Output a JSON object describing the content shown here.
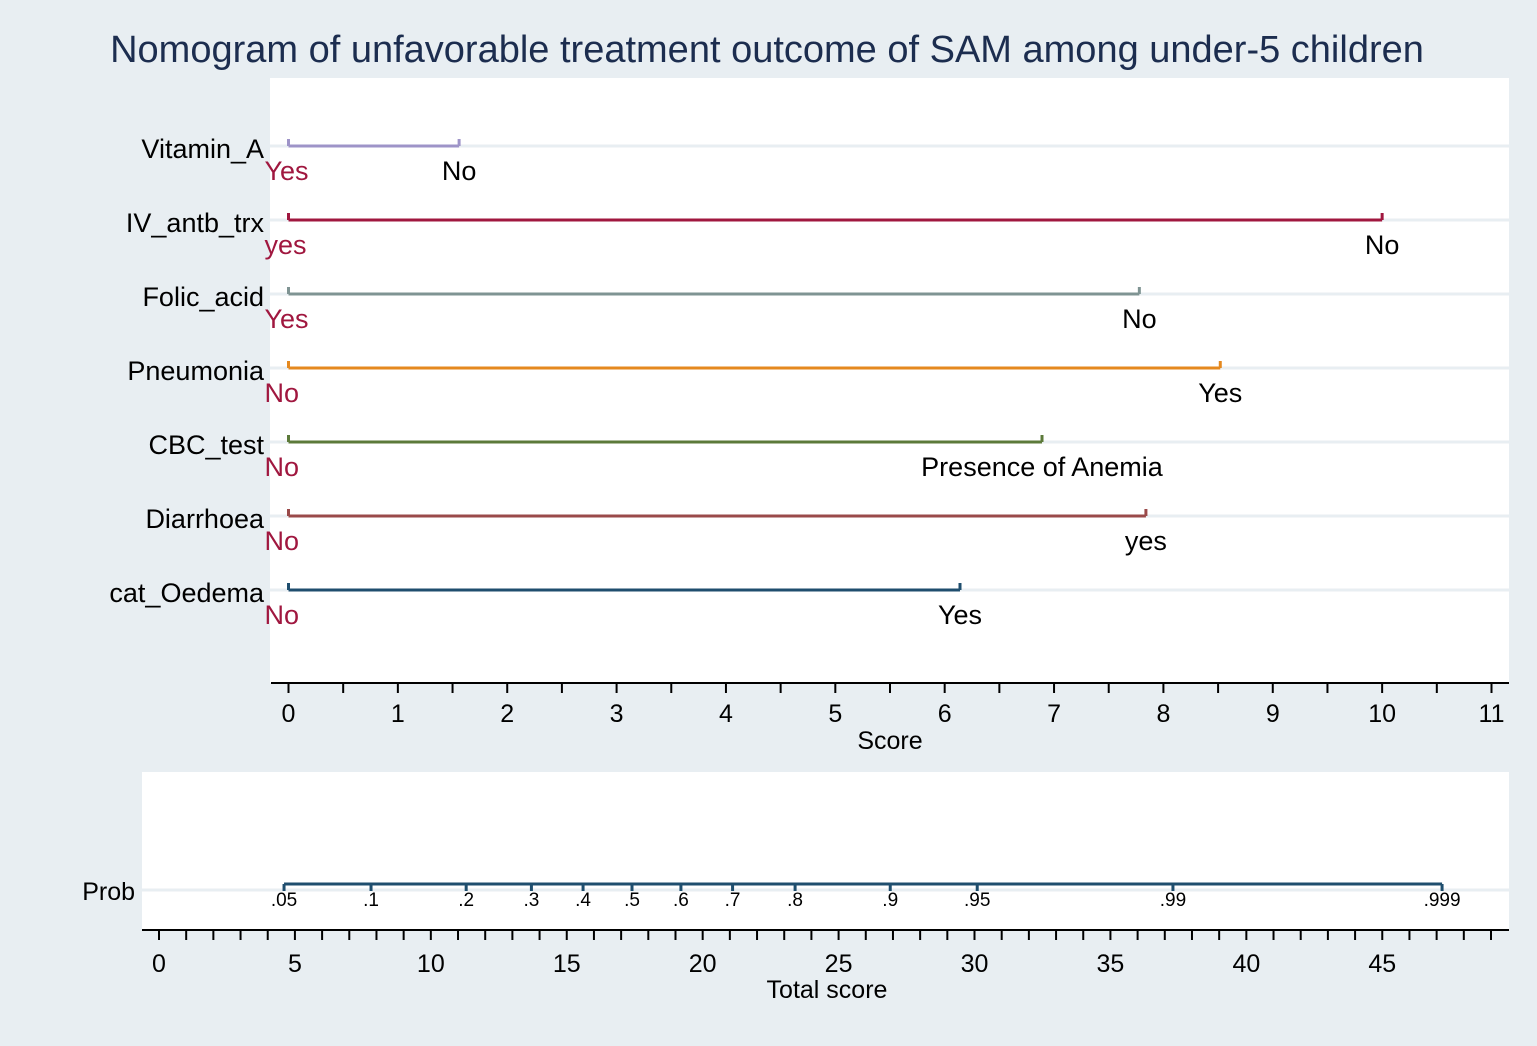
{
  "chart_data": {
    "type": "nomogram",
    "title": "Nomogram  of unfavorable treatment outcome of SAM among under-5 children",
    "colors": {
      "background": "#E8EEF2",
      "plot_region": "#FFFFFF",
      "grid": "#E8EEF2",
      "title": "#1C2D4F",
      "reference_label": "#A0173F",
      "text": "#000000",
      "prob_line": "#1F4E6E"
    },
    "score_axis": {
      "label": "Score",
      "min": 0,
      "max": 11,
      "ticks": [
        0,
        1,
        2,
        3,
        4,
        5,
        6,
        7,
        8,
        9,
        10,
        11
      ],
      "tick_labels": [
        "0",
        "1",
        "2",
        "3",
        "4",
        "5",
        "6",
        "7",
        "8",
        "9",
        "10",
        "11"
      ]
    },
    "variables": [
      {
        "name": "Vitamin_A",
        "color": "#9E94C8",
        "ref_label": "Yes",
        "ref_score": 0,
        "end_label": "No",
        "end_score": 1.56
      },
      {
        "name": "IV_antb_trx",
        "color": "#A0173F",
        "ref_label": "yes",
        "ref_score": 0,
        "end_label": "No",
        "end_score": 10.0
      },
      {
        "name": "Folic_acid",
        "color": "#7F9493",
        "ref_label": "Yes",
        "ref_score": 0,
        "end_label": "No",
        "end_score": 7.78
      },
      {
        "name": "Pneumonia",
        "color": "#E5891F",
        "ref_label": "No",
        "ref_score": 0,
        "end_label": "Yes",
        "end_score": 8.52
      },
      {
        "name": "CBC_test",
        "color": "#5C7A3A",
        "ref_label": "No",
        "ref_score": 0,
        "end_label": "Presence of Anemia",
        "end_score": 6.89
      },
      {
        "name": "Diarrhoea",
        "color": "#9A4A4A",
        "ref_label": "No",
        "ref_score": 0,
        "end_label": "yes",
        "end_score": 7.84
      },
      {
        "name": "cat_Oedema",
        "color": "#1F4E6E",
        "ref_label": "No",
        "ref_score": 0,
        "end_label": "Yes",
        "end_score": 6.14
      }
    ],
    "total_axis": {
      "label": "Total score",
      "min": 0,
      "max": 49,
      "major_ticks": [
        0,
        5,
        10,
        15,
        20,
        25,
        30,
        35,
        40,
        45
      ],
      "major_labels": [
        "0",
        "5",
        "10",
        "15",
        "20",
        "25",
        "30",
        "35",
        "40",
        "45"
      ],
      "minor_step": 1
    },
    "prob_axis": {
      "label": "Prob",
      "points": [
        {
          "label": ".05",
          "total_score": 4.6
        },
        {
          "label": ".1",
          "total_score": 7.8
        },
        {
          "label": ".2",
          "total_score": 11.3
        },
        {
          "label": ".3",
          "total_score": 13.7
        },
        {
          "label": ".4",
          "total_score": 15.6
        },
        {
          "label": ".5",
          "total_score": 17.4
        },
        {
          "label": ".6",
          "total_score": 19.2
        },
        {
          "label": ".7",
          "total_score": 21.1
        },
        {
          "label": ".8",
          "total_score": 23.4
        },
        {
          "label": ".9",
          "total_score": 26.9
        },
        {
          "label": ".95",
          "total_score": 30.1
        },
        {
          "label": ".99",
          "total_score": 37.3
        },
        {
          "label": ".999",
          "total_score": 47.2
        }
      ]
    }
  }
}
